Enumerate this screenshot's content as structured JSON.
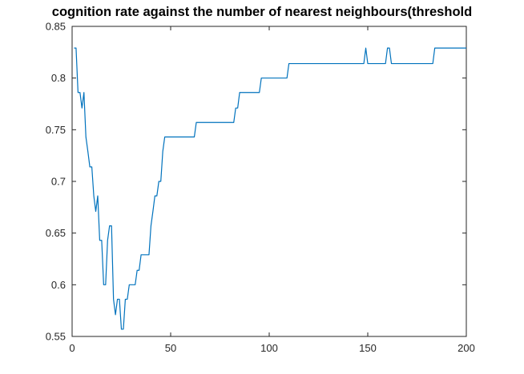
{
  "chart_data": {
    "type": "line",
    "title": "cognition rate against the number of nearest neighbours(threshold",
    "xlabel": "",
    "ylabel": "",
    "xlim": [
      0,
      200
    ],
    "ylim": [
      0.55,
      0.85
    ],
    "x_ticks": [
      0,
      50,
      100,
      150,
      200
    ],
    "y_ticks": [
      0.55,
      0.6,
      0.65,
      0.7,
      0.75,
      0.8,
      0.85
    ],
    "x_tick_labels": [
      "0",
      "50",
      "100",
      "150",
      "200"
    ],
    "y_tick_labels": [
      "0.55",
      "0.6",
      "0.65",
      "0.7",
      "0.75",
      "0.8",
      "0.85"
    ],
    "grid": false,
    "line_color": "#0072BD",
    "series": [
      {
        "x": [
          1,
          2,
          3,
          4,
          5,
          6,
          7,
          8,
          9,
          10,
          11,
          12,
          13,
          14,
          15,
          16,
          17,
          18,
          19,
          20,
          21,
          22,
          23,
          24,
          25,
          26,
          27,
          28,
          29,
          30,
          31,
          32,
          33,
          34,
          35,
          36,
          37,
          38,
          39,
          40,
          41,
          42,
          43,
          44,
          45,
          46,
          47,
          48,
          62,
          63,
          82,
          83,
          84,
          85,
          95,
          96,
          109,
          110,
          148,
          149,
          150,
          159,
          160,
          161,
          162,
          183,
          184,
          185,
          200
        ],
        "y": [
          0.829,
          0.829,
          0.786,
          0.786,
          0.771,
          0.786,
          0.743,
          0.729,
          0.714,
          0.714,
          0.686,
          0.671,
          0.686,
          0.643,
          0.643,
          0.6,
          0.6,
          0.643,
          0.657,
          0.657,
          0.586,
          0.571,
          0.586,
          0.586,
          0.557,
          0.557,
          0.586,
          0.586,
          0.6,
          0.6,
          0.6,
          0.6,
          0.614,
          0.614,
          0.629,
          0.629,
          0.629,
          0.629,
          0.629,
          0.657,
          0.671,
          0.686,
          0.686,
          0.7,
          0.7,
          0.729,
          0.743,
          0.743,
          0.743,
          0.757,
          0.757,
          0.771,
          0.771,
          0.786,
          0.786,
          0.8,
          0.8,
          0.814,
          0.814,
          0.829,
          0.814,
          0.814,
          0.829,
          0.829,
          0.814,
          0.814,
          0.829,
          0.829,
          0.829
        ]
      }
    ]
  }
}
